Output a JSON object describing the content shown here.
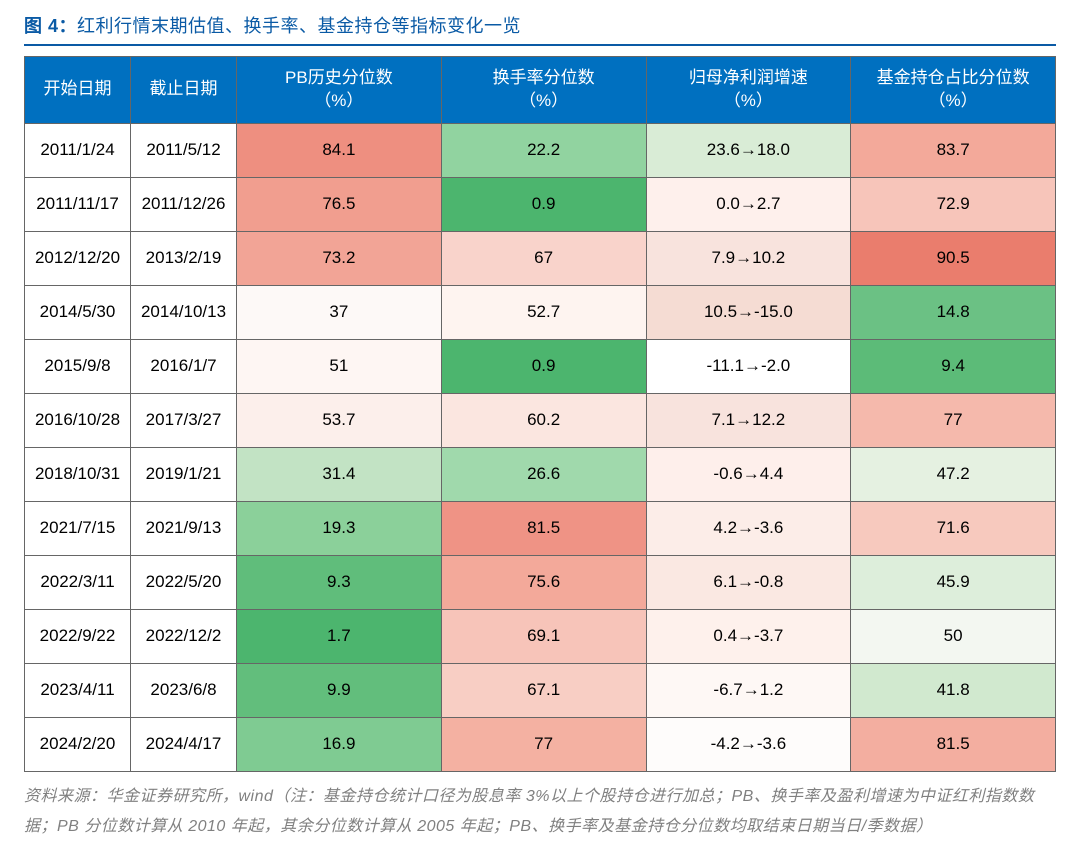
{
  "figure": {
    "label": "图 4：",
    "title": "红利行情末期估值、换手率、基金持仓等指标变化一览"
  },
  "table": {
    "columns": [
      {
        "key": "start",
        "label": "开始日期"
      },
      {
        "key": "end",
        "label": "截止日期"
      },
      {
        "key": "pb",
        "label": "PB历史分位数\n（%）"
      },
      {
        "key": "turn",
        "label": "换手率分位数\n（%）"
      },
      {
        "key": "profit",
        "label": "归母净利润增速\n（%）"
      },
      {
        "key": "fund",
        "label": "基金持仓占比分位数\n（%）"
      }
    ],
    "rows": [
      {
        "start": "2011/1/24",
        "end": "2011/5/12",
        "pb": {
          "v": "84.1",
          "bg": "#ee8f80"
        },
        "turn": {
          "v": "22.2",
          "bg": "#91d3a0"
        },
        "profit": {
          "v": "23.6→18.0",
          "bg": "#d9ecd6"
        },
        "fund": {
          "v": "83.7",
          "bg": "#f3a99a"
        }
      },
      {
        "start": "2011/11/17",
        "end": "2011/12/26",
        "pb": {
          "v": "76.5",
          "bg": "#f19e8f"
        },
        "turn": {
          "v": "0.9",
          "bg": "#4cb56e"
        },
        "profit": {
          "v": "0.0→2.7",
          "bg": "#fef0ec"
        },
        "fund": {
          "v": "72.9",
          "bg": "#f7c5ba"
        }
      },
      {
        "start": "2012/12/20",
        "end": "2013/2/19",
        "pb": {
          "v": "73.2",
          "bg": "#f2a496"
        },
        "turn": {
          "v": "67",
          "bg": "#f9d3cb"
        },
        "profit": {
          "v": "7.9→10.2",
          "bg": "#f8e3dd"
        },
        "fund": {
          "v": "90.5",
          "bg": "#ea7d6d"
        }
      },
      {
        "start": "2014/5/30",
        "end": "2014/10/13",
        "pb": {
          "v": "37",
          "bg": "#fdf9f7"
        },
        "turn": {
          "v": "52.7",
          "bg": "#fef4f0"
        },
        "profit": {
          "v": "10.5→-15.0",
          "bg": "#f5dcd3"
        },
        "fund": {
          "v": "14.8",
          "bg": "#6bc184"
        }
      },
      {
        "start": "2015/9/8",
        "end": "2016/1/7",
        "pb": {
          "v": "51",
          "bg": "#fef6f3"
        },
        "turn": {
          "v": "0.9",
          "bg": "#4cb56e"
        },
        "profit": {
          "v": "-11.1→-2.0",
          "bg": "#ffffff"
        },
        "fund": {
          "v": "9.4",
          "bg": "#5cbb78"
        }
      },
      {
        "start": "2016/10/28",
        "end": "2017/3/27",
        "pb": {
          "v": "53.7",
          "bg": "#fcefeb"
        },
        "turn": {
          "v": "60.2",
          "bg": "#fbe6e0"
        },
        "profit": {
          "v": "7.1→12.2",
          "bg": "#f8e3dd"
        },
        "fund": {
          "v": "77",
          "bg": "#f5b9ac"
        }
      },
      {
        "start": "2018/10/31",
        "end": "2019/1/21",
        "pb": {
          "v": "31.4",
          "bg": "#c2e3c4"
        },
        "turn": {
          "v": "26.6",
          "bg": "#a0d9ac"
        },
        "profit": {
          "v": "-0.6→4.4",
          "bg": "#feefeb"
        },
        "fund": {
          "v": "47.2",
          "bg": "#e5f1e1"
        }
      },
      {
        "start": "2021/7/15",
        "end": "2021/9/13",
        "pb": {
          "v": "19.3",
          "bg": "#8bd09a"
        },
        "turn": {
          "v": "81.5",
          "bg": "#ef9385"
        },
        "profit": {
          "v": "4.2→-3.6",
          "bg": "#fcede8"
        },
        "fund": {
          "v": "71.6",
          "bg": "#f7c9be"
        }
      },
      {
        "start": "2022/3/11",
        "end": "2022/5/20",
        "pb": {
          "v": "9.3",
          "bg": "#60bd7b"
        },
        "turn": {
          "v": "75.6",
          "bg": "#f3a99a"
        },
        "profit": {
          "v": "6.1→-0.8",
          "bg": "#fae8e2"
        },
        "fund": {
          "v": "45.9",
          "bg": "#ddeedb"
        }
      },
      {
        "start": "2022/9/22",
        "end": "2022/12/2",
        "pb": {
          "v": "1.7",
          "bg": "#4cb56e"
        },
        "turn": {
          "v": "69.1",
          "bg": "#f7c4b9"
        },
        "profit": {
          "v": "0.4→-3.7",
          "bg": "#fef1ec"
        },
        "fund": {
          "v": "50",
          "bg": "#f3f7f1"
        }
      },
      {
        "start": "2023/4/11",
        "end": "2023/6/8",
        "pb": {
          "v": "9.9",
          "bg": "#62be7c"
        },
        "turn": {
          "v": "67.1",
          "bg": "#f8cec4"
        },
        "profit": {
          "v": "-6.7→1.2",
          "bg": "#fef8f5"
        },
        "fund": {
          "v": "41.8",
          "bg": "#d1e9cf"
        }
      },
      {
        "start": "2024/2/20",
        "end": "2024/4/17",
        "pb": {
          "v": "16.9",
          "bg": "#7fcb92"
        },
        "turn": {
          "v": "77",
          "bg": "#f4b1a2"
        },
        "profit": {
          "v": "-4.2→-3.6",
          "bg": "#fefcfb"
        },
        "fund": {
          "v": "81.5",
          "bg": "#f3aea0"
        }
      }
    ]
  },
  "source": "资料来源：华金证券研究所，wind（注：基金持仓统计口径为股息率 3%以上个股持仓进行加总；PB、换手率及盈利增速为中证红利指数数据；PB 分位数计算从 2010 年起，其余分位数计算从 2005 年起；PB、换手率及基金持仓分位数均取结束日期当日/季数据）"
}
